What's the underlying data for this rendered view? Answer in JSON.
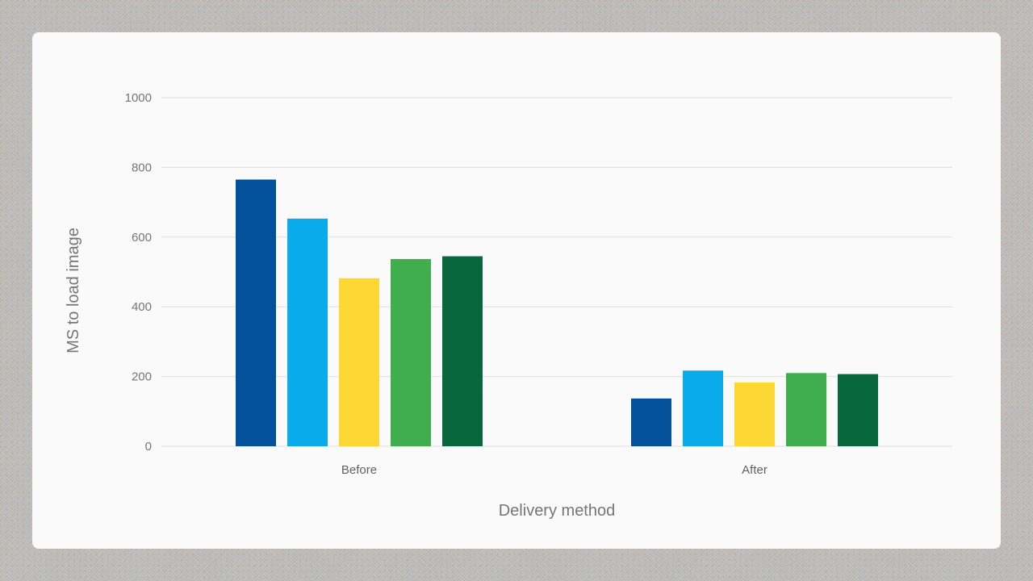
{
  "chart_data": {
    "type": "bar",
    "title": "",
    "xlabel": "Delivery method",
    "ylabel": "MS to load image",
    "categories": [
      "Before",
      "After"
    ],
    "ylim": [
      0,
      1000
    ],
    "yticks": [
      0,
      200,
      400,
      600,
      800,
      1000
    ],
    "grid": true,
    "legend": "none",
    "series": [
      {
        "color": "#03519a",
        "values": [
          765,
          137
        ]
      },
      {
        "color": "#09abea",
        "values": [
          653,
          217
        ]
      },
      {
        "color": "#fdd835",
        "values": [
          482,
          183
        ]
      },
      {
        "color": "#40ae4f",
        "values": [
          537,
          210
        ]
      },
      {
        "color": "#09673d",
        "values": [
          545,
          207
        ]
      }
    ]
  }
}
